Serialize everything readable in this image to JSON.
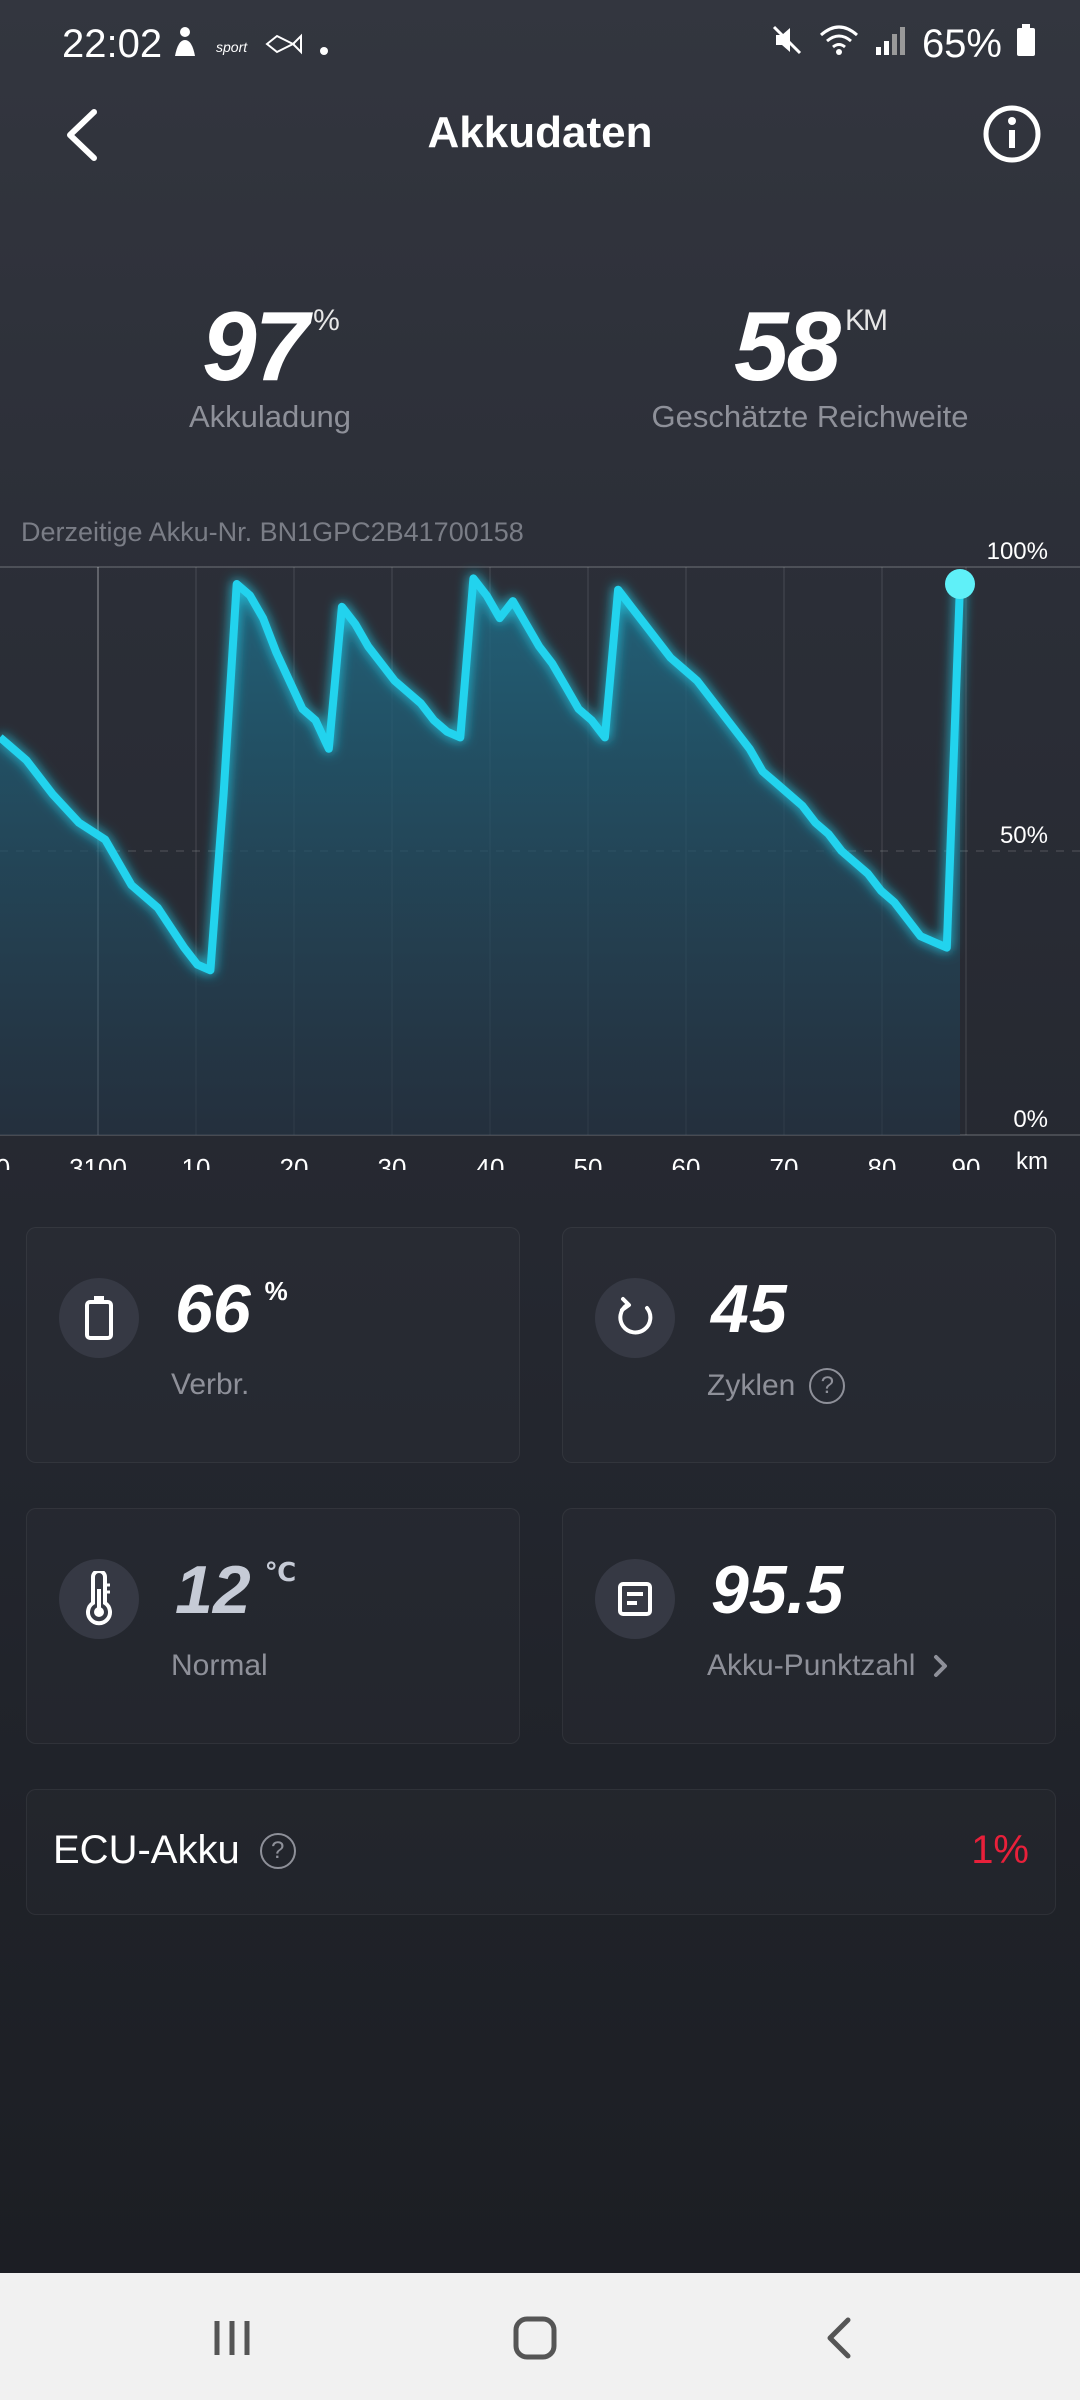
{
  "status_bar": {
    "time": "22:02",
    "notification_icons": [
      "person-icon",
      "sport-app-icon",
      "fish-icon",
      "dot-icon"
    ],
    "battery_percent": "65%",
    "status_icons": [
      "mute-icon",
      "wifi-icon",
      "signal-icon",
      "battery-icon"
    ]
  },
  "header": {
    "title": "Akkudaten"
  },
  "summary": {
    "charge_value": "97",
    "charge_unit": "%",
    "charge_label": "Akkuladung",
    "range_value": "58",
    "range_unit": "KM",
    "range_label": "Geschätzte Reichweite"
  },
  "pack_id": "Derzeitige Akku-Nr. BN1GPC2B41700158",
  "chart_data": {
    "type": "area",
    "x_tick_labels": [
      "0",
      "3100",
      "10",
      "20",
      "30",
      "40",
      "50",
      "60",
      "70",
      "80",
      "90"
    ],
    "x_unit": "km",
    "y_tick_labels": [
      "100%",
      "50%",
      "0%"
    ],
    "ylim": [
      0,
      100
    ],
    "grid": true,
    "line_color": "#22d3ee",
    "points": [
      [
        -10,
        70
      ],
      [
        -8,
        66
      ],
      [
        -6,
        60
      ],
      [
        -4,
        55
      ],
      [
        -2,
        52
      ],
      [
        0,
        44
      ],
      [
        2,
        40
      ],
      [
        4,
        33
      ],
      [
        5,
        30
      ],
      [
        6,
        29
      ],
      [
        7,
        60
      ],
      [
        8,
        97
      ],
      [
        9,
        95
      ],
      [
        10,
        91
      ],
      [
        11,
        85
      ],
      [
        12,
        80
      ],
      [
        13,
        75
      ],
      [
        14,
        73
      ],
      [
        15,
        68
      ],
      [
        16,
        93
      ],
      [
        17,
        90
      ],
      [
        18,
        86
      ],
      [
        19,
        83
      ],
      [
        20,
        80
      ],
      [
        21,
        78
      ],
      [
        22,
        76
      ],
      [
        23,
        73
      ],
      [
        24,
        71
      ],
      [
        25,
        70
      ],
      [
        26,
        98
      ],
      [
        27,
        95
      ],
      [
        28,
        91
      ],
      [
        29,
        94
      ],
      [
        30,
        90
      ],
      [
        31,
        86
      ],
      [
        32,
        83
      ],
      [
        33,
        79
      ],
      [
        34,
        75
      ],
      [
        35,
        73
      ],
      [
        36,
        70
      ],
      [
        37,
        96
      ],
      [
        38,
        93
      ],
      [
        39,
        90
      ],
      [
        40,
        87
      ],
      [
        41,
        84
      ],
      [
        42,
        82
      ],
      [
        43,
        80
      ],
      [
        44,
        77
      ],
      [
        45,
        74
      ],
      [
        46,
        71
      ],
      [
        47,
        68
      ],
      [
        48,
        64
      ],
      [
        49,
        62
      ],
      [
        50,
        60
      ],
      [
        51,
        58
      ],
      [
        52,
        55
      ],
      [
        53,
        53
      ],
      [
        54,
        50
      ],
      [
        55,
        48
      ],
      [
        56,
        46
      ],
      [
        57,
        43
      ],
      [
        58,
        41
      ],
      [
        59,
        38
      ],
      [
        60,
        35
      ],
      [
        61,
        34
      ],
      [
        62,
        33
      ],
      [
        63,
        97
      ]
    ],
    "marker_point": [
      63,
      97
    ]
  },
  "cards": [
    {
      "icon": "battery-icon",
      "value": "66",
      "unit": "%",
      "label": "Verbr."
    },
    {
      "icon": "refresh-icon",
      "value": "45",
      "unit": "",
      "label": "Zyklen"
    },
    {
      "icon": "thermometer-icon",
      "value": "12",
      "unit": "℃",
      "label": "Normal"
    },
    {
      "icon": "document-icon",
      "value": "95.5",
      "unit": "",
      "label": "Akku-Punktzahl"
    }
  ],
  "ecu": {
    "label": "ECU-Akku",
    "value": "1%"
  },
  "colors": {
    "accent": "#22d3ee",
    "warning": "#e8203a",
    "label_gray": "#8e9099"
  },
  "nav": {
    "icons": [
      "recent-apps-icon",
      "home-icon",
      "back-icon"
    ]
  }
}
